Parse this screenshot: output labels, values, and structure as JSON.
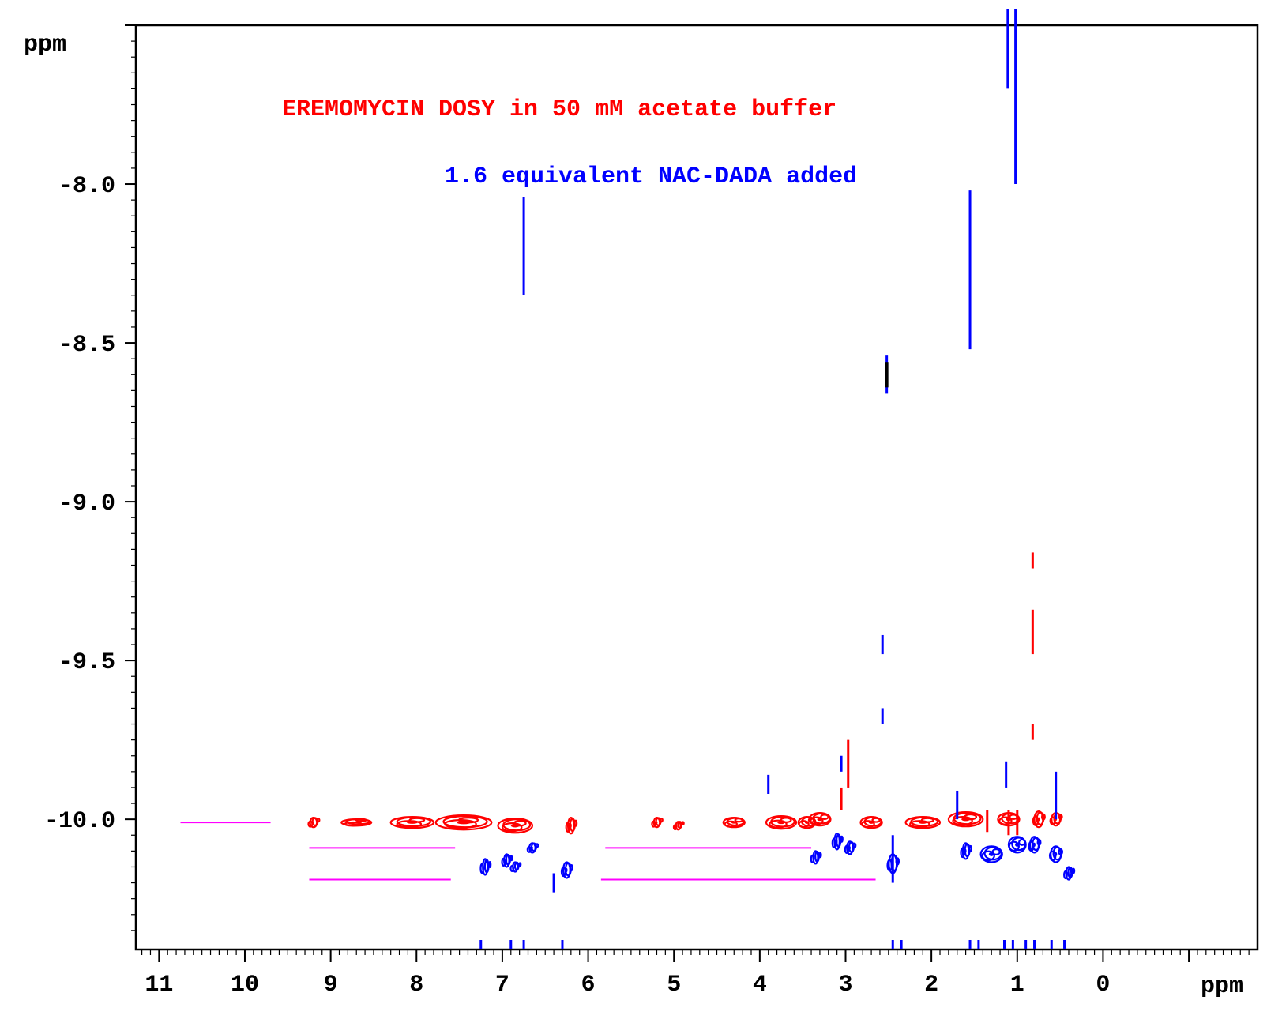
{
  "chart_data": {
    "type": "scatter",
    "x_axis": {
      "label": "ppm",
      "direction": "reversed",
      "xlim": [
        11.27,
        -1.8
      ],
      "ticks": [
        11,
        10,
        9,
        8,
        7,
        6,
        5,
        4,
        3,
        2,
        1,
        0
      ],
      "tick_labels": [
        "11",
        "10",
        "9",
        "8",
        "7",
        "6",
        "5",
        "4",
        "3",
        "2",
        "1",
        "0"
      ]
    },
    "y_axis": {
      "label": "ppm",
      "ylim": [
        -7.5,
        -10.41
      ],
      "ticks": [
        -8.0,
        -8.5,
        -9.0,
        -9.5,
        -10.0
      ],
      "tick_labels": [
        "-8.0",
        "-8.5",
        "-9.0",
        "-9.5",
        "-10.0"
      ]
    },
    "annotations": [
      {
        "text": "EREMOMYCIN DOSY in 50 mM acetate buffer",
        "color": "#ff0000"
      },
      {
        "text": "1.6 equivalent NAC-DADA added",
        "color": "#0000ff"
      }
    ],
    "colors": {
      "series_a": "#ff0000",
      "series_b": "#0000ff",
      "reference": "#ff00ff",
      "axis": "#000000"
    },
    "series": [
      {
        "color": "#ff0000",
        "blobs": [
          [
            9.2,
            -10.01,
            0.08,
            0.03
          ],
          [
            8.7,
            -10.01,
            0.35,
            0.02
          ],
          [
            8.05,
            -10.01,
            0.5,
            0.035
          ],
          [
            7.45,
            -10.01,
            0.65,
            0.045
          ],
          [
            6.85,
            -10.02,
            0.4,
            0.045
          ],
          [
            6.2,
            -10.02,
            0.07,
            0.05
          ],
          [
            5.2,
            -10.01,
            0.07,
            0.03
          ],
          [
            4.95,
            -10.02,
            0.05,
            0.025
          ],
          [
            4.3,
            -10.01,
            0.25,
            0.03
          ],
          [
            3.75,
            -10.01,
            0.35,
            0.04
          ],
          [
            3.3,
            -10.0,
            0.25,
            0.04
          ],
          [
            2.7,
            -10.01,
            0.25,
            0.035
          ],
          [
            2.1,
            -10.01,
            0.4,
            0.035
          ],
          [
            1.6,
            -10.0,
            0.4,
            0.045
          ],
          [
            1.1,
            -10.0,
            0.25,
            0.04
          ],
          [
            0.75,
            -10.0,
            0.1,
            0.05
          ],
          [
            0.55,
            -10.0,
            0.1,
            0.04
          ],
          [
            3.45,
            -10.01,
            0.2,
            0.035
          ]
        ],
        "lines": [
          [
            0.82,
            -9.16,
            -9.21
          ],
          [
            0.82,
            -9.34,
            -9.48
          ],
          [
            0.82,
            -9.7,
            -9.75
          ],
          [
            2.97,
            -9.75,
            -9.9
          ],
          [
            3.05,
            -9.9,
            -9.97
          ],
          [
            1.0,
            -9.97,
            -10.05
          ],
          [
            1.1,
            -9.97,
            -10.05
          ],
          [
            1.35,
            -9.97,
            -10.04
          ]
        ]
      },
      {
        "color": "#0000ff",
        "blobs": [
          [
            7.2,
            -10.15,
            0.05,
            0.05
          ],
          [
            6.95,
            -10.13,
            0.06,
            0.04
          ],
          [
            6.85,
            -10.15,
            0.04,
            0.03
          ],
          [
            6.65,
            -10.09,
            0.07,
            0.03
          ],
          [
            6.25,
            -10.16,
            0.08,
            0.05
          ],
          [
            3.35,
            -10.12,
            0.04,
            0.04
          ],
          [
            3.1,
            -10.07,
            0.06,
            0.05
          ],
          [
            2.45,
            -10.14,
            0.09,
            0.06
          ],
          [
            1.6,
            -10.1,
            0.07,
            0.05
          ],
          [
            1.3,
            -10.11,
            0.25,
            0.05
          ],
          [
            1.0,
            -10.08,
            0.2,
            0.05
          ],
          [
            0.8,
            -10.08,
            0.1,
            0.05
          ],
          [
            0.55,
            -10.11,
            0.12,
            0.05
          ],
          [
            0.4,
            -10.17,
            0.06,
            0.04
          ],
          [
            2.95,
            -10.09,
            0.07,
            0.04
          ]
        ],
        "lines": [
          [
            1.02,
            -7.45,
            -8.0
          ],
          [
            1.11,
            -7.45,
            -7.7
          ],
          [
            1.55,
            -8.02,
            -8.52
          ],
          [
            6.75,
            -8.04,
            -8.35
          ],
          [
            2.52,
            -8.54,
            -8.66
          ],
          [
            2.57,
            -9.42,
            -9.48
          ],
          [
            2.57,
            -9.65,
            -9.7
          ],
          [
            3.9,
            -9.86,
            -9.92
          ],
          [
            6.4,
            -10.17,
            -10.23
          ],
          [
            0.55,
            -9.85,
            -10.0
          ],
          [
            1.7,
            -9.91,
            -10.0
          ],
          [
            1.13,
            -9.82,
            -9.9
          ],
          [
            3.05,
            -9.8,
            -9.85
          ],
          [
            2.45,
            -10.05,
            -10.2
          ]
        ],
        "bottom_ticks": [
          7.25,
          6.9,
          6.75,
          6.3,
          2.45,
          2.35,
          1.55,
          1.45,
          1.15,
          1.05,
          0.9,
          0.8,
          0.6,
          0.45
        ]
      }
    ],
    "reference_lines": [
      [
        10.75,
        9.7,
        -10.01
      ],
      [
        9.25,
        7.55,
        -10.09
      ],
      [
        9.25,
        7.6,
        -10.19
      ],
      [
        5.8,
        3.4,
        -10.09
      ],
      [
        5.85,
        2.65,
        -10.19
      ]
    ]
  }
}
